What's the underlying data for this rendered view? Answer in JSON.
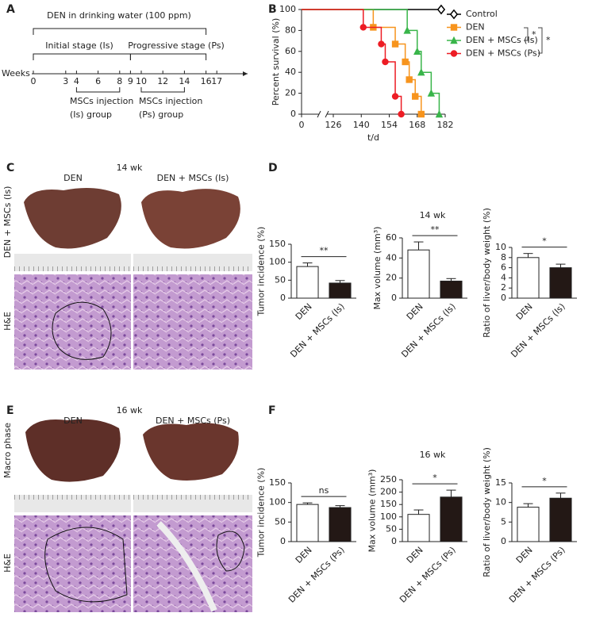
{
  "panel_labels": [
    "A",
    "B",
    "C",
    "D",
    "E",
    "F"
  ],
  "panel_a": {
    "title": "DEN in drinking water (100 ppm)",
    "stages": [
      "Initial stage (Is)",
      "Progressive stage (Ps)"
    ],
    "axis_label": "Weeks",
    "weeks": [
      0,
      3,
      4,
      6,
      8,
      9,
      10,
      12,
      14,
      16,
      17
    ],
    "injections": [
      [
        "MSCs injection",
        "(Is) group"
      ],
      [
        "MSCs injection",
        "(Ps) group"
      ]
    ]
  },
  "panel_c": {
    "title": "14 wk",
    "columns": [
      "DEN",
      "DEN + MSCs (Is)"
    ],
    "rows": [
      "DEN + MSCs (Is)",
      "H&E"
    ]
  },
  "panel_d": {
    "title": "14 wk"
  },
  "panel_e": {
    "title": "16 wk",
    "columns": [
      "DEN",
      "DEN + MSCs (Ps)"
    ],
    "rows": [
      "Macro phase",
      "H&E"
    ]
  },
  "panel_f": {
    "title": "16 wk"
  },
  "chart_data": [
    {
      "type": "survival",
      "y_label": "Percent survival (%)",
      "x_label": "t/d",
      "xlim": [
        0,
        182
      ],
      "xticks": [
        0,
        126,
        140,
        154,
        168,
        182
      ],
      "axis_break": true,
      "ylim": [
        0,
        100
      ],
      "yticks": [
        0,
        20,
        40,
        60,
        80,
        100
      ],
      "series": [
        {
          "name": "Control",
          "color": "#000000",
          "marker": "diamond",
          "x": [
            180
          ],
          "values": [
            100
          ]
        },
        {
          "name": "DEN",
          "color": "#f7941d",
          "marker": "square",
          "x": [
            146,
            157,
            162,
            164,
            167,
            170
          ],
          "values": [
            83,
            67,
            50,
            33,
            17,
            0
          ]
        },
        {
          "name": "DEN + MSCs (Is)",
          "color": "#39b54a",
          "marker": "triangle",
          "x": [
            163,
            168,
            170,
            175,
            179
          ],
          "values": [
            80,
            60,
            40,
            20,
            0
          ]
        },
        {
          "name": "DEN + MSCs (Ps)",
          "color": "#ed1c24",
          "marker": "circle",
          "x": [
            141,
            150,
            152,
            157,
            160
          ],
          "values": [
            83,
            67,
            50,
            17,
            0
          ]
        }
      ],
      "significance": [
        "*",
        "*"
      ]
    },
    {
      "type": "bar",
      "y_label": "Tumor incidence (%)",
      "categories": [
        "DEN",
        "DEN + MSCs (Is)"
      ],
      "values": [
        88,
        42
      ],
      "errors": [
        10,
        7
      ],
      "colors": [
        "#ffffff",
        "#231815"
      ],
      "ylim": [
        0,
        150
      ],
      "yticks": [
        0,
        50,
        100,
        150
      ],
      "significance": "**"
    },
    {
      "type": "bar",
      "y_label": "Max volume (mm³)",
      "categories": [
        "DEN",
        "DEN + MSCs (Is)"
      ],
      "values": [
        48,
        17
      ],
      "errors": [
        8,
        2.5
      ],
      "colors": [
        "#ffffff",
        "#231815"
      ],
      "ylim": [
        0,
        60
      ],
      "yticks": [
        0,
        20,
        40,
        60
      ],
      "significance": "**"
    },
    {
      "type": "bar",
      "y_label": "Ratio of liver/body weight (%)",
      "categories": [
        "DEN",
        "DEN + MSCs (Is)"
      ],
      "values": [
        8,
        6
      ],
      "errors": [
        0.8,
        0.7
      ],
      "colors": [
        "#ffffff",
        "#231815"
      ],
      "ylim": [
        0,
        10
      ],
      "yticks": [
        0,
        2,
        4,
        6,
        8,
        10
      ],
      "significance": "*"
    },
    {
      "type": "bar",
      "y_label": "Tumor incidence (%)",
      "categories": [
        "DEN",
        "DEN + MSCs (Ps)"
      ],
      "values": [
        95,
        87
      ],
      "errors": [
        4,
        5
      ],
      "colors": [
        "#ffffff",
        "#231815"
      ],
      "ylim": [
        0,
        150
      ],
      "yticks": [
        0,
        50,
        100,
        150
      ],
      "significance": "ns"
    },
    {
      "type": "bar",
      "y_label": "Max volume (mm³)",
      "categories": [
        "DEN",
        "DEN + MSCs (Ps)"
      ],
      "values": [
        110,
        180
      ],
      "errors": [
        18,
        28
      ],
      "colors": [
        "#ffffff",
        "#231815"
      ],
      "ylim": [
        0,
        250
      ],
      "yticks": [
        0,
        50,
        100,
        150,
        200,
        250
      ],
      "significance": "*"
    },
    {
      "type": "bar",
      "y_label": "Ratio of liver/body weight (%)",
      "categories": [
        "DEN",
        "DEN + MSCs (Ps)"
      ],
      "values": [
        8.8,
        11.1
      ],
      "errors": [
        0.9,
        1.3
      ],
      "colors": [
        "#ffffff",
        "#231815"
      ],
      "ylim": [
        0,
        15
      ],
      "yticks": [
        0,
        5,
        10,
        15
      ],
      "significance": "*"
    }
  ]
}
